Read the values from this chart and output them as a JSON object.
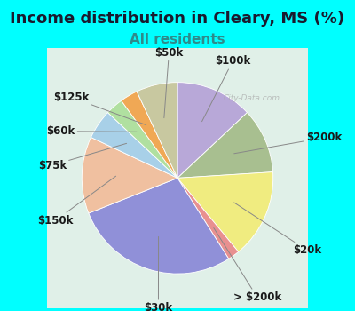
{
  "title": "Income distribution in Cleary, MS (%)",
  "subtitle": "All residents",
  "title_fontsize": 13,
  "subtitle_fontsize": 11,
  "title_color": "#1a1a2e",
  "subtitle_color": "#2e8b8b",
  "background_color": "#00FFFF",
  "chart_bg_color": "#e0f0e8",
  "labels": [
    "$100k",
    "$200k",
    "$20k",
    "> $200k",
    "$30k",
    "$150k",
    "$75k",
    "$60k",
    "$125k",
    "$50k"
  ],
  "sizes": [
    13,
    11,
    15,
    2,
    28,
    13,
    5,
    3,
    3,
    7
  ],
  "colors": [
    "#b8a8d8",
    "#a8bf90",
    "#f0ec80",
    "#e89090",
    "#9090d8",
    "#f0c0a0",
    "#a8d0e8",
    "#b0e0a0",
    "#f0a855",
    "#c8c8a0"
  ],
  "startangle": 90,
  "label_fontsize": 8.5,
  "label_color": "#1a1a1a"
}
